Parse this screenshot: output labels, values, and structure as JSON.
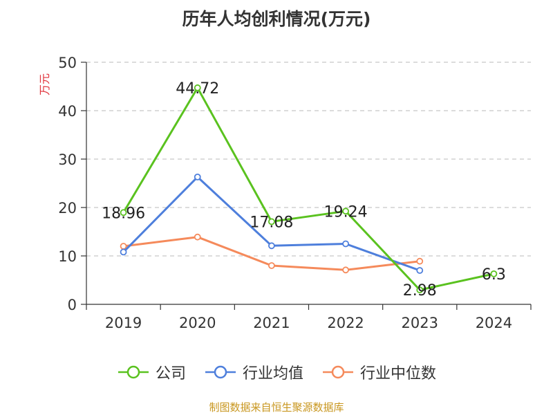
{
  "chart_data": {
    "type": "line",
    "title": "历年人均创利情况(万元)",
    "ylabel": "万元",
    "xlabel": "",
    "ylim": [
      0,
      50
    ],
    "yticks": [
      0,
      10,
      20,
      30,
      40,
      50
    ],
    "categories": [
      "2019",
      "2020",
      "2021",
      "2022",
      "2023",
      "2024"
    ],
    "grid": "horizontal-dashed",
    "legend_position": "bottom-center",
    "series": [
      {
        "name": "公司",
        "color": "#5ac21f",
        "values": [
          18.96,
          44.72,
          17.08,
          19.24,
          2.98,
          6.3
        ],
        "labels": [
          "18.96",
          "44.72",
          "17.08",
          "19.24",
          "2.98",
          "6.3"
        ]
      },
      {
        "name": "行业均值",
        "color": "#4e7fdc",
        "values": [
          10.8,
          26.3,
          12.1,
          12.5,
          7.0,
          null
        ]
      },
      {
        "name": "行业中位数",
        "color": "#f58a5b",
        "values": [
          12.0,
          13.9,
          8.0,
          7.1,
          8.9,
          null
        ]
      }
    ]
  },
  "footer": {
    "source": "制图数据来自恒生聚源数据库"
  }
}
